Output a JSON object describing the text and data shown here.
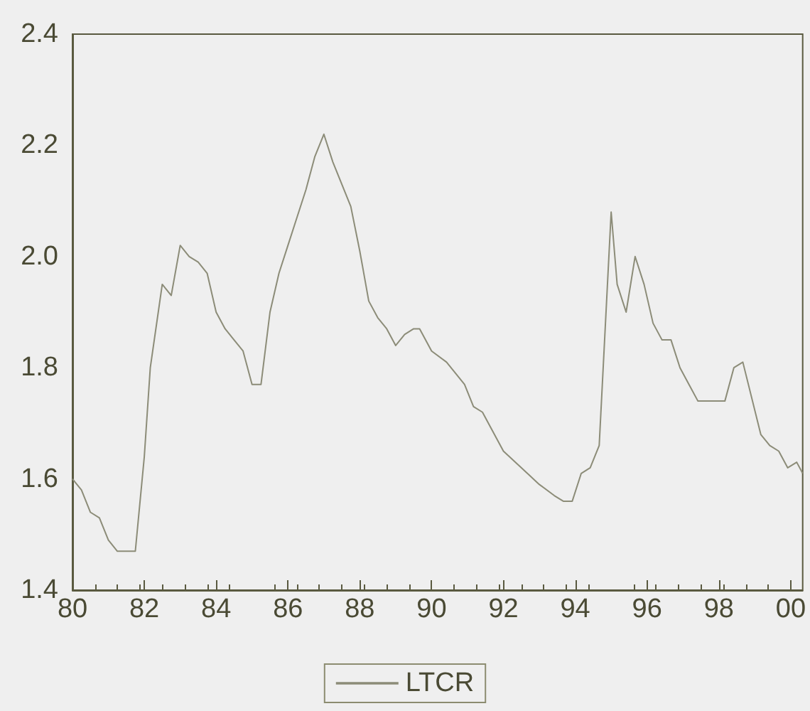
{
  "chart_data": {
    "type": "line",
    "x": [
      "1980-01",
      "1980-04",
      "1980-07",
      "1980-10",
      "1981-01",
      "1981-04",
      "1981-07",
      "1981-10",
      "1982-01",
      "1982-03",
      "1982-07",
      "1982-10",
      "1983-01",
      "1983-04",
      "1983-07",
      "1983-10",
      "1984-01",
      "1984-04",
      "1984-07",
      "1984-10",
      "1985-01",
      "1985-04",
      "1985-07",
      "1985-10",
      "1986-01",
      "1986-04",
      "1986-07",
      "1986-10",
      "1987-01",
      "1987-04",
      "1987-07",
      "1987-10",
      "1988-01",
      "1988-04",
      "1988-07",
      "1988-10",
      "1989-01",
      "1989-04",
      "1989-07",
      "1989-09",
      "1990-01",
      "1990-06",
      "1990-12",
      "1991-03",
      "1991-06",
      "1991-09",
      "1992-01",
      "1992-09",
      "1993-01",
      "1993-06",
      "1993-09",
      "1993-12",
      "1994-03",
      "1994-06",
      "1994-09",
      "1995-01",
      "1995-03",
      "1995-06",
      "1995-09",
      "1995-12",
      "1996-03",
      "1996-06",
      "1996-09",
      "1996-12",
      "1997-03",
      "1997-06",
      "1997-09",
      "1998-03",
      "1998-06",
      "1998-09",
      "1999-03",
      "1999-06",
      "1999-09",
      "1999-12",
      "2000-03",
      "2000-05"
    ],
    "series": [
      {
        "name": "LTCR",
        "color": "#8c8c78",
        "values": [
          1.6,
          1.58,
          1.54,
          1.53,
          1.49,
          1.47,
          1.47,
          1.47,
          1.64,
          1.8,
          1.95,
          1.93,
          2.02,
          2.0,
          1.99,
          1.97,
          1.9,
          1.87,
          1.85,
          1.83,
          1.77,
          1.77,
          1.9,
          1.97,
          2.02,
          2.07,
          2.12,
          2.18,
          2.22,
          2.17,
          2.13,
          2.09,
          2.01,
          1.92,
          1.89,
          1.87,
          1.84,
          1.86,
          1.87,
          1.87,
          1.83,
          1.81,
          1.77,
          1.73,
          1.72,
          1.69,
          1.65,
          1.61,
          1.59,
          1.57,
          1.56,
          1.56,
          1.61,
          1.62,
          1.66,
          2.08,
          1.95,
          1.9,
          2.0,
          1.95,
          1.88,
          1.85,
          1.85,
          1.8,
          1.77,
          1.74,
          1.74,
          1.74,
          1.8,
          1.81,
          1.68,
          1.66,
          1.65,
          1.62,
          1.63,
          1.61
        ]
      }
    ],
    "xlim": [
      "1980-01",
      "2000-05"
    ],
    "xticks": [
      {
        "value": "1980",
        "label": "80"
      },
      {
        "value": "1982",
        "label": "82"
      },
      {
        "value": "1984",
        "label": "84"
      },
      {
        "value": "1986",
        "label": "86"
      },
      {
        "value": "1988",
        "label": "88"
      },
      {
        "value": "1990",
        "label": "90"
      },
      {
        "value": "1992",
        "label": "92"
      },
      {
        "value": "1994",
        "label": "94"
      },
      {
        "value": "1996",
        "label": "96"
      },
      {
        "value": "1998",
        "label": "98"
      },
      {
        "value": "2000",
        "label": "00"
      }
    ],
    "ylim": [
      1.4,
      2.4
    ],
    "yticks": [
      {
        "value": 1.4,
        "label": "1.4"
      },
      {
        "value": 1.6,
        "label": "1.6"
      },
      {
        "value": 1.8,
        "label": "1.8"
      },
      {
        "value": 2.0,
        "label": "2.0"
      },
      {
        "value": 2.2,
        "label": "2.2"
      },
      {
        "value": 2.4,
        "label": "2.4"
      }
    ],
    "legend": "bottom"
  }
}
